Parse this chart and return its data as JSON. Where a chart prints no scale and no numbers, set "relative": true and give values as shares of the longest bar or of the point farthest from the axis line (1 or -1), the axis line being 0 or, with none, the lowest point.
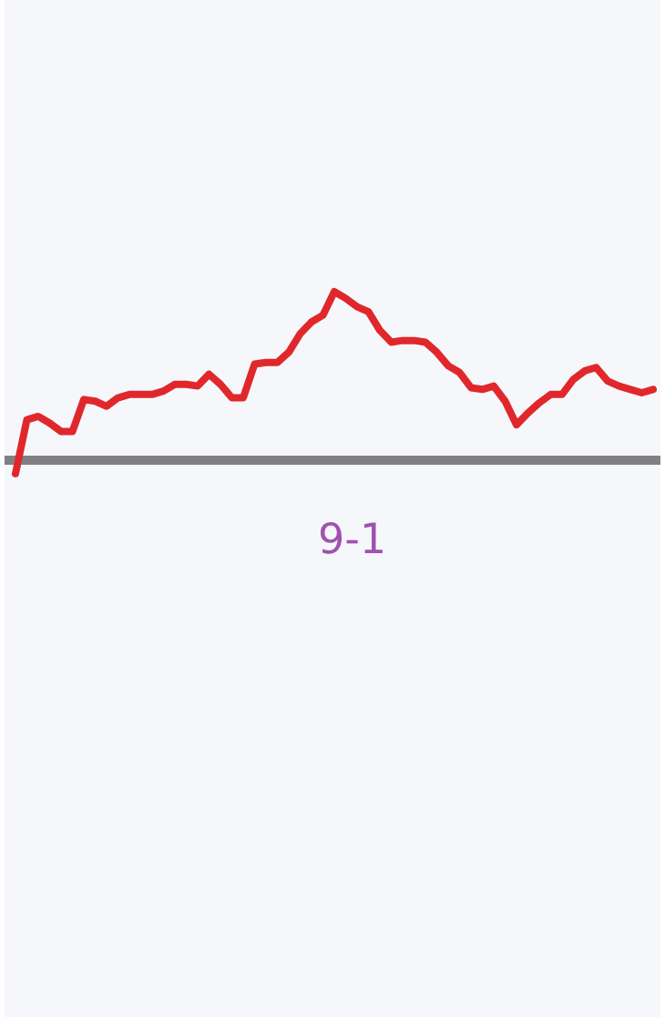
{
  "chart_data": {
    "type": "line",
    "relative": true,
    "xlabel": "9-1",
    "color": "#e0282c",
    "marker": "none",
    "categories": [
      null,
      null,
      null,
      null,
      null,
      null,
      null,
      null,
      null,
      null,
      null,
      null,
      null,
      null,
      null,
      null,
      null,
      null,
      null,
      null,
      null,
      null,
      null,
      null,
      null,
      null,
      null,
      null,
      null,
      null,
      null,
      null,
      null,
      null,
      null,
      null,
      null,
      null,
      null,
      null,
      null,
      null,
      null,
      null,
      null,
      null,
      null,
      null,
      null,
      null,
      null,
      null,
      null,
      null,
      null,
      null,
      null
    ],
    "values": [
      -0.08,
      0.24,
      0.26,
      0.22,
      0.17,
      0.17,
      0.36,
      0.35,
      0.32,
      0.37,
      0.39,
      0.39,
      0.39,
      0.41,
      0.45,
      0.45,
      0.44,
      0.51,
      0.45,
      0.37,
      0.37,
      0.57,
      0.58,
      0.58,
      0.64,
      0.75,
      0.82,
      0.86,
      1.0,
      0.96,
      0.91,
      0.88,
      0.77,
      0.7,
      0.71,
      0.71,
      0.7,
      0.64,
      0.56,
      0.52,
      0.43,
      0.42,
      0.44,
      0.35,
      0.21,
      0.28,
      0.34,
      0.39,
      0.39,
      0.48,
      0.53,
      0.55,
      0.47,
      0.44,
      0.42,
      0.4,
      0.42
    ]
  }
}
